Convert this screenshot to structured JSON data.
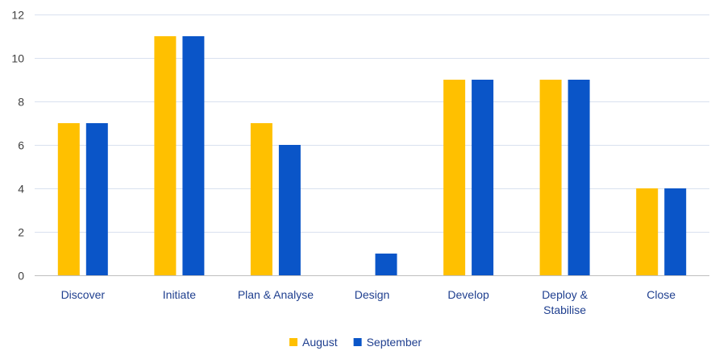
{
  "chart_data": {
    "type": "bar",
    "categories": [
      [
        "Discover"
      ],
      [
        "Initiate"
      ],
      [
        "Plan & Analyse"
      ],
      [
        "Design"
      ],
      [
        "Develop"
      ],
      [
        "Deploy &",
        "Stabilise"
      ],
      [
        "Close"
      ]
    ],
    "series": [
      {
        "name": "August",
        "color": "#FFC000",
        "values": [
          7,
          11,
          7,
          0,
          9,
          9,
          4
        ]
      },
      {
        "name": "September",
        "color": "#0A55C8",
        "values": [
          7,
          11,
          6,
          1,
          9,
          9,
          4
        ]
      }
    ],
    "ylim": [
      0,
      12
    ],
    "yticks": [
      0,
      2,
      4,
      6,
      8,
      10,
      12
    ],
    "title": "",
    "xlabel": "",
    "ylabel": "",
    "grid": true,
    "legend_position": "bottom-center"
  }
}
